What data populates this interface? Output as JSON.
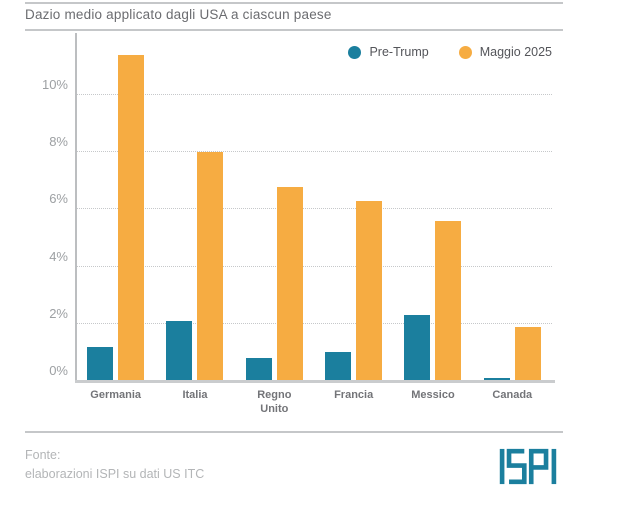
{
  "header": {
    "title": "Dazio medio applicato dagli USA a ciascun paese"
  },
  "chart_data": {
    "type": "bar",
    "title": "Dazio medio applicato dagli USA a ciascun paese",
    "categories": [
      "Germania",
      "Italia",
      "Regno Unito",
      "Francia",
      "Messico",
      "Canada"
    ],
    "series": [
      {
        "name": "Pre-Trump",
        "color": "#1B7F9E",
        "values": [
          1.2,
          2.1,
          0.8,
          1.0,
          2.3,
          0.1
        ]
      },
      {
        "name": "Maggio 2025",
        "color": "#F6AC42",
        "values": [
          11.4,
          8.0,
          6.8,
          6.3,
          5.6,
          1.9
        ]
      }
    ],
    "unit": "%",
    "ytick_values": [
      0,
      2,
      4,
      6,
      8,
      10
    ],
    "ytick_labels": [
      "0%",
      "2%",
      "4%",
      "6%",
      "8%",
      "10%"
    ],
    "ylim": [
      0,
      12.2
    ],
    "grid": "dotted-horizontal",
    "legend_position": "top-right"
  },
  "colors": {
    "pre_trump": "#1B7F9E",
    "maggio_2025": "#F6AC42",
    "logo": "#1B7F9E",
    "divider": "#c5c7c9"
  },
  "footer": {
    "source_label": "Fonte:",
    "source_text": "elaborazioni ISPI su dati US ITC",
    "logo_text": "ISPI"
  }
}
